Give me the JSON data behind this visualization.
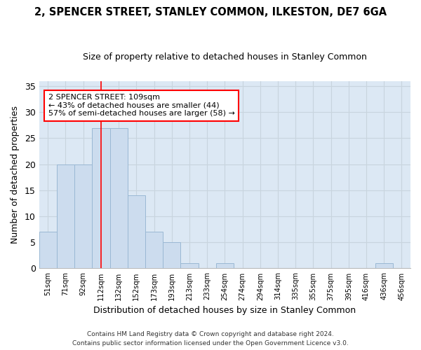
{
  "title1": "2, SPENCER STREET, STANLEY COMMON, ILKESTON, DE7 6GA",
  "title2": "Size of property relative to detached houses in Stanley Common",
  "xlabel": "Distribution of detached houses by size in Stanley Common",
  "ylabel": "Number of detached properties",
  "footer1": "Contains HM Land Registry data © Crown copyright and database right 2024.",
  "footer2": "Contains public sector information licensed under the Open Government Licence v3.0.",
  "bar_labels": [
    "51sqm",
    "71sqm",
    "92sqm",
    "112sqm",
    "132sqm",
    "152sqm",
    "173sqm",
    "193sqm",
    "213sqm",
    "233sqm",
    "254sqm",
    "274sqm",
    "294sqm",
    "314sqm",
    "335sqm",
    "355sqm",
    "375sqm",
    "395sqm",
    "416sqm",
    "436sqm",
    "456sqm"
  ],
  "bar_values": [
    7,
    20,
    20,
    27,
    27,
    14,
    7,
    5,
    1,
    0,
    1,
    0,
    0,
    0,
    0,
    0,
    0,
    0,
    0,
    1,
    0
  ],
  "bar_color": "#ccdcee",
  "bar_edge_color": "#9ab8d4",
  "grid_color": "#c8d4de",
  "vline_x": 3.0,
  "vline_color": "red",
  "annotation_text": "2 SPENCER STREET: 109sqm\n← 43% of detached houses are smaller (44)\n57% of semi-detached houses are larger (58) →",
  "annotation_box_color": "white",
  "annotation_box_edge_color": "red",
  "ylim": [
    0,
    36
  ],
  "yticks": [
    0,
    5,
    10,
    15,
    20,
    25,
    30,
    35
  ],
  "bg_color": "#ffffff",
  "plot_bg_color": "#dce8f4",
  "title1_fontsize": 10.5,
  "title2_fontsize": 9
}
